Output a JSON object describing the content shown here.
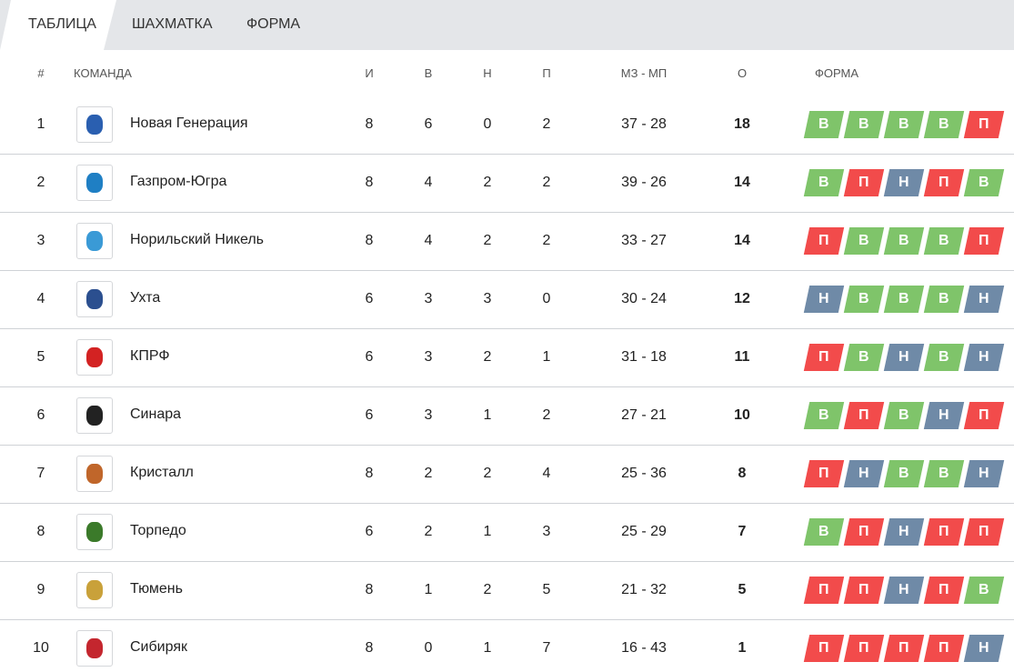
{
  "tabs": [
    "ТАБЛИЦА",
    "ШАХМАТКА",
    "ФОРМА"
  ],
  "header": [
    "#",
    "КОМАНДА",
    "И",
    "В",
    "Н",
    "П",
    "МЗ - МП",
    "О",
    "ФОРМА"
  ],
  "form_colors": {
    "В": "#7fc46a",
    "П": "#f24b4b",
    "Н": "#6f8aa7"
  },
  "rows": [
    {
      "pos": 1,
      "team": "Новая Генерация",
      "games": 8,
      "wins": 6,
      "draws": 0,
      "losses": 2,
      "goals": "37 - 28",
      "points": 18,
      "form": [
        "В",
        "В",
        "В",
        "В",
        "П"
      ]
    },
    {
      "pos": 2,
      "team": "Газпром-Югра",
      "games": 8,
      "wins": 4,
      "draws": 2,
      "losses": 2,
      "goals": "39 - 26",
      "points": 14,
      "form": [
        "В",
        "П",
        "Н",
        "П",
        "В"
      ]
    },
    {
      "pos": 3,
      "team": "Норильский Никель",
      "games": 8,
      "wins": 4,
      "draws": 2,
      "losses": 2,
      "goals": "33 - 27",
      "points": 14,
      "form": [
        "П",
        "В",
        "В",
        "В",
        "П"
      ]
    },
    {
      "pos": 4,
      "team": "Ухта",
      "games": 6,
      "wins": 3,
      "draws": 3,
      "losses": 0,
      "goals": "30 - 24",
      "points": 12,
      "form": [
        "Н",
        "В",
        "В",
        "В",
        "Н"
      ]
    },
    {
      "pos": 5,
      "team": "КПРФ",
      "games": 6,
      "wins": 3,
      "draws": 2,
      "losses": 1,
      "goals": "31 - 18",
      "points": 11,
      "form": [
        "П",
        "В",
        "Н",
        "В",
        "Н"
      ]
    },
    {
      "pos": 6,
      "team": "Синара",
      "games": 6,
      "wins": 3,
      "draws": 1,
      "losses": 2,
      "goals": "27 - 21",
      "points": 10,
      "form": [
        "В",
        "П",
        "В",
        "Н",
        "П"
      ]
    },
    {
      "pos": 7,
      "team": "Кристалл",
      "games": 8,
      "wins": 2,
      "draws": 2,
      "losses": 4,
      "goals": "25 - 36",
      "points": 8,
      "form": [
        "П",
        "Н",
        "В",
        "В",
        "Н"
      ]
    },
    {
      "pos": 8,
      "team": "Торпедо",
      "games": 6,
      "wins": 2,
      "draws": 1,
      "losses": 3,
      "goals": "25 - 29",
      "points": 7,
      "form": [
        "В",
        "П",
        "Н",
        "П",
        "П"
      ]
    },
    {
      "pos": 9,
      "team": "Тюмень",
      "games": 8,
      "wins": 1,
      "draws": 2,
      "losses": 5,
      "goals": "21 - 32",
      "points": 5,
      "form": [
        "П",
        "П",
        "Н",
        "П",
        "В"
      ]
    },
    {
      "pos": 10,
      "team": "Сибиряк",
      "games": 8,
      "wins": 0,
      "draws": 1,
      "losses": 7,
      "goals": "16 - 43",
      "points": 1,
      "form": [
        "П",
        "П",
        "П",
        "П",
        "Н"
      ]
    }
  ]
}
